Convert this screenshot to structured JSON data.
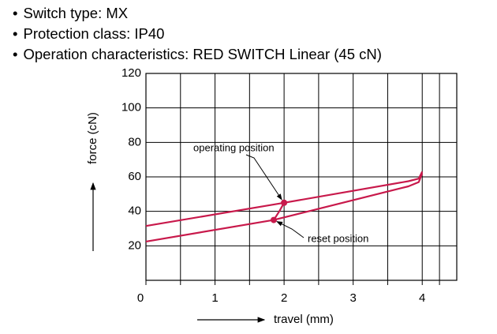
{
  "bullets": [
    "Switch type: MX",
    "Protection class: IP40",
    "Operation characteristics: RED SWITCH Linear (45 cN)"
  ],
  "chart_data": {
    "type": "line",
    "x_label": "travel (mm)",
    "y_label": "force (cN)",
    "xlim": [
      0,
      4.5
    ],
    "xticks": [
      0,
      1,
      2,
      3,
      4
    ],
    "ylim": [
      0,
      120
    ],
    "yticks": [
      20,
      40,
      60,
      80,
      100,
      120
    ],
    "grid": true,
    "color": "#c8194b",
    "series": [
      {
        "color": "#c8194b",
        "x": [
          0,
          2,
          3.8,
          3.95,
          4
        ],
        "values": [
          31.5,
          45,
          57.5,
          59,
          63
        ]
      },
      {
        "color": "#c8194b",
        "x": [
          0,
          1.85,
          3.8,
          3.95,
          4
        ],
        "values": [
          22.5,
          35,
          54.5,
          57,
          62
        ]
      },
      {
        "color": "#c8194b",
        "x": [
          1.85,
          1.93,
          2
        ],
        "values": [
          35,
          40,
          45
        ]
      }
    ],
    "annotations": [
      {
        "text": "operating position",
        "x": 2,
        "y": 45
      },
      {
        "text": "reset position",
        "x": 1.85,
        "y": 35
      }
    ]
  }
}
